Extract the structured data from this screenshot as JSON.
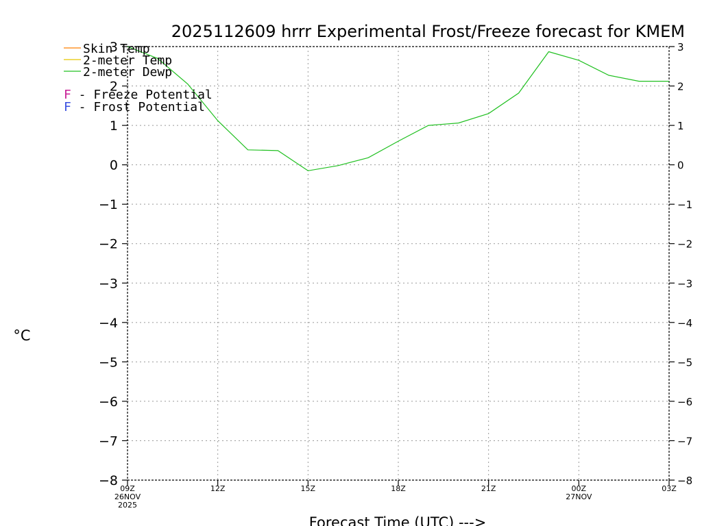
{
  "chart_data": {
    "type": "line",
    "title": "2025112609 hrrr Experimental Frost/Freeze forecast for KMEM",
    "ylabel": "°C",
    "xlabel": "Forecast Time (UTC) --->",
    "ylim": [
      -8,
      3
    ],
    "yticks": [
      3,
      2,
      1,
      0,
      -1,
      -2,
      -3,
      -4,
      -5,
      -6,
      -7,
      -8
    ],
    "ytick_labels": [
      "3",
      "2",
      "1",
      "0",
      "−1",
      "−2",
      "−3",
      "−4",
      "−5",
      "−6",
      "−7",
      "−8"
    ],
    "xlim": [
      0,
      18
    ],
    "xticks": [
      {
        "x": 0,
        "lines": [
          "09Z",
          "26NOV",
          "2025"
        ]
      },
      {
        "x": 3,
        "lines": [
          "12Z"
        ]
      },
      {
        "x": 6,
        "lines": [
          "15Z"
        ]
      },
      {
        "x": 9,
        "lines": [
          "18Z"
        ]
      },
      {
        "x": 12,
        "lines": [
          "21Z"
        ]
      },
      {
        "x": 15,
        "lines": [
          "00Z",
          "27NOV"
        ]
      },
      {
        "x": 18,
        "lines": [
          "03Z"
        ]
      }
    ],
    "series": [
      {
        "name": "Skin Temp",
        "color": "#ff8000",
        "x": [],
        "values": []
      },
      {
        "name": "2-meter Temp",
        "color": "#e6c800",
        "x": [],
        "values": []
      },
      {
        "name": "2-meter Dewp",
        "color": "#20c020",
        "x": [
          0,
          1,
          2,
          3,
          4,
          5,
          6,
          7,
          8,
          9,
          10,
          11,
          12,
          13,
          14,
          15,
          16,
          17,
          18
        ],
        "values": [
          3.0,
          2.7,
          2.05,
          1.12,
          0.38,
          0.36,
          -0.15,
          -0.02,
          0.18,
          0.6,
          1.0,
          1.06,
          1.3,
          1.82,
          2.87,
          2.65,
          2.27,
          2.12,
          2.12
        ]
      }
    ],
    "legend": {
      "placement": "top-left",
      "line_entries": [
        "Skin Temp",
        "2-meter Temp",
        "2-meter Dewp"
      ],
      "potential_entries": [
        {
          "letter": "F",
          "text": " - Freeze Potential",
          "color": "#c81e96"
        },
        {
          "letter": "F",
          "text": " - Frost Potential",
          "color": "#3a4fe0"
        }
      ]
    },
    "grid": true
  }
}
